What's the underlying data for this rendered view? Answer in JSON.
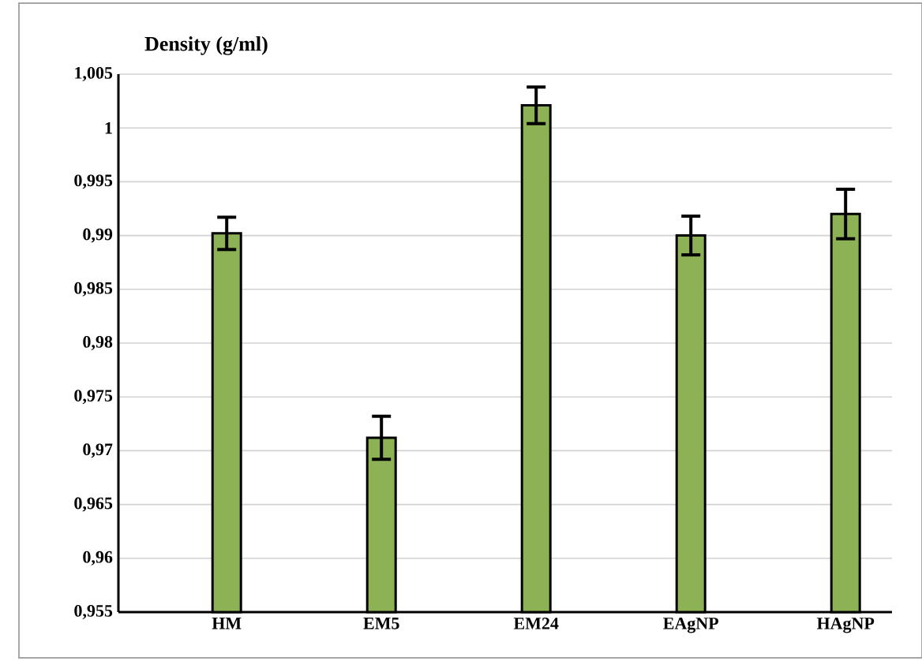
{
  "chart_data": {
    "type": "bar",
    "ylabel": "Density (g/ml)",
    "categories": [
      "HM",
      "EM5",
      "EM24",
      "EAgNP",
      "HAgNP"
    ],
    "values": [
      0.9902,
      0.9712,
      1.0021,
      0.99,
      0.992
    ],
    "errors": [
      0.0015,
      0.002,
      0.0017,
      0.0018,
      0.0023
    ],
    "color": "#8db255",
    "ylim": [
      0.955,
      1.005
    ],
    "yticks": [
      {
        "value": 0.955,
        "label": "0,955"
      },
      {
        "value": 0.96,
        "label": "0,96"
      },
      {
        "value": 0.965,
        "label": "0,965"
      },
      {
        "value": 0.97,
        "label": "0,97"
      },
      {
        "value": 0.975,
        "label": "0,975"
      },
      {
        "value": 0.98,
        "label": "0,98"
      },
      {
        "value": 0.985,
        "label": "0,985"
      },
      {
        "value": 0.99,
        "label": "0,99"
      },
      {
        "value": 0.995,
        "label": "0,995"
      },
      {
        "value": 1,
        "label": "1"
      },
      {
        "value": 1.005,
        "label": "1,005"
      }
    ],
    "grid": "y"
  }
}
